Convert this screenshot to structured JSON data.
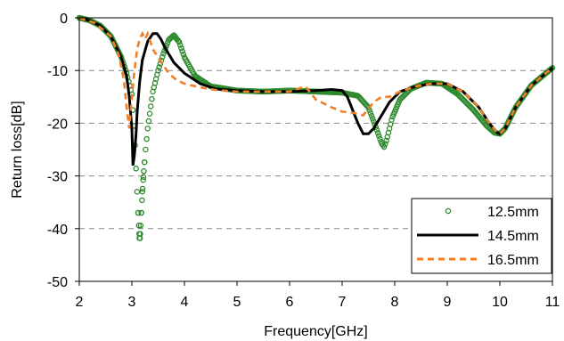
{
  "chart_data": {
    "type": "line",
    "title": "",
    "xlabel": "Frequency[GHz]",
    "ylabel": "Return loss[dB]",
    "xlim": [
      2,
      11
    ],
    "ylim": [
      -50,
      0
    ],
    "x_ticks": [
      "2",
      "3",
      "4",
      "5",
      "6",
      "7",
      "8",
      "9",
      "10",
      "11"
    ],
    "y_ticks": [
      "0",
      "-10",
      "-20",
      "-30",
      "-40",
      "-50"
    ],
    "grid": "horizontal dashed",
    "legend_position": "bottom-right",
    "series": [
      {
        "name": "12.5mm",
        "style": "markers",
        "color": "#2e8b2e",
        "x": [
          2.0,
          2.2,
          2.4,
          2.6,
          2.8,
          2.9,
          3.0,
          3.05,
          3.1,
          3.15,
          3.2,
          3.25,
          3.3,
          3.35,
          3.4,
          3.5,
          3.6,
          3.7,
          3.8,
          3.9,
          4.0,
          4.2,
          4.5,
          5.0,
          5.5,
          6.0,
          6.5,
          7.0,
          7.3,
          7.5,
          7.65,
          7.75,
          7.8,
          7.85,
          7.95,
          8.1,
          8.3,
          8.6,
          8.9,
          9.2,
          9.5,
          9.75,
          9.9,
          10.0,
          10.1,
          10.3,
          10.6,
          11.0
        ],
        "y": [
          0.0,
          -0.5,
          -1.5,
          -3.5,
          -7.5,
          -10.5,
          -14.5,
          -22.0,
          -33.0,
          -43.0,
          -33.0,
          -26.0,
          -21.0,
          -17.5,
          -14.0,
          -10.0,
          -6.8,
          -4.2,
          -3.3,
          -4.6,
          -7.5,
          -11.0,
          -13.0,
          -13.8,
          -14.0,
          -13.8,
          -14.0,
          -14.2,
          -14.8,
          -17.0,
          -21.0,
          -23.8,
          -24.5,
          -23.0,
          -19.0,
          -15.5,
          -13.5,
          -12.3,
          -12.5,
          -14.5,
          -17.5,
          -20.5,
          -21.8,
          -22.0,
          -21.0,
          -17.0,
          -12.8,
          -9.5
        ]
      },
      {
        "name": "14.5mm",
        "style": "solid",
        "color": "#000000",
        "x": [
          2.0,
          2.2,
          2.4,
          2.6,
          2.8,
          2.9,
          2.95,
          3.0,
          3.02,
          3.05,
          3.08,
          3.1,
          3.15,
          3.2,
          3.3,
          3.4,
          3.48,
          3.55,
          3.65,
          3.8,
          4.0,
          4.3,
          4.6,
          5.0,
          5.5,
          6.0,
          6.5,
          6.8,
          7.0,
          7.1,
          7.2,
          7.3,
          7.4,
          7.5,
          7.6,
          7.75,
          7.9,
          8.1,
          8.4,
          8.7,
          9.0,
          9.3,
          9.6,
          9.8,
          9.95,
          10.0,
          10.1,
          10.3,
          10.6,
          11.0
        ],
        "y": [
          0.0,
          -0.5,
          -1.5,
          -3.5,
          -7.5,
          -11.0,
          -15.0,
          -21.0,
          -28.0,
          -26.0,
          -22.0,
          -18.0,
          -12.0,
          -8.0,
          -4.5,
          -3.0,
          -3.0,
          -4.0,
          -6.0,
          -8.5,
          -10.5,
          -12.5,
          -13.5,
          -13.8,
          -14.0,
          -14.0,
          -13.8,
          -13.6,
          -13.8,
          -15.0,
          -17.5,
          -20.0,
          -22.0,
          -22.0,
          -21.0,
          -18.5,
          -16.0,
          -14.0,
          -13.0,
          -12.5,
          -12.5,
          -14.0,
          -17.0,
          -20.0,
          -21.8,
          -22.0,
          -21.0,
          -17.0,
          -12.8,
          -9.5
        ]
      },
      {
        "name": "16.5mm",
        "style": "dashed",
        "color": "#f07f27",
        "x": [
          2.0,
          2.3,
          2.6,
          2.75,
          2.85,
          2.9,
          2.95,
          3.0,
          3.05,
          3.1,
          3.15,
          3.2,
          3.25,
          3.3,
          3.35,
          3.4,
          3.5,
          3.6,
          3.7,
          3.85,
          4.0,
          4.3,
          4.6,
          5.0,
          5.5,
          6.0,
          6.3,
          6.5,
          6.8,
          7.0,
          7.2,
          7.4,
          7.6,
          7.75,
          7.9,
          8.1,
          8.4,
          8.7,
          9.0,
          9.3,
          9.6,
          9.8,
          9.95,
          10.0,
          10.1,
          10.3,
          10.6,
          11.0
        ],
        "y": [
          0.0,
          -1.0,
          -3.5,
          -7.0,
          -12.0,
          -17.0,
          -21.0,
          -15.0,
          -10.0,
          -6.0,
          -4.0,
          -3.0,
          -4.0,
          -3.0,
          -4.5,
          -6.0,
          -7.5,
          -9.0,
          -10.5,
          -11.8,
          -12.5,
          -13.2,
          -13.7,
          -14.0,
          -14.0,
          -14.0,
          -13.0,
          -15.5,
          -17.0,
          -17.8,
          -18.0,
          -18.5,
          -16.0,
          -15.0,
          -15.0,
          -14.0,
          -13.0,
          -12.5,
          -12.5,
          -14.0,
          -17.0,
          -20.0,
          -21.8,
          -22.0,
          -21.0,
          -17.0,
          -12.8,
          -9.5
        ]
      }
    ]
  }
}
